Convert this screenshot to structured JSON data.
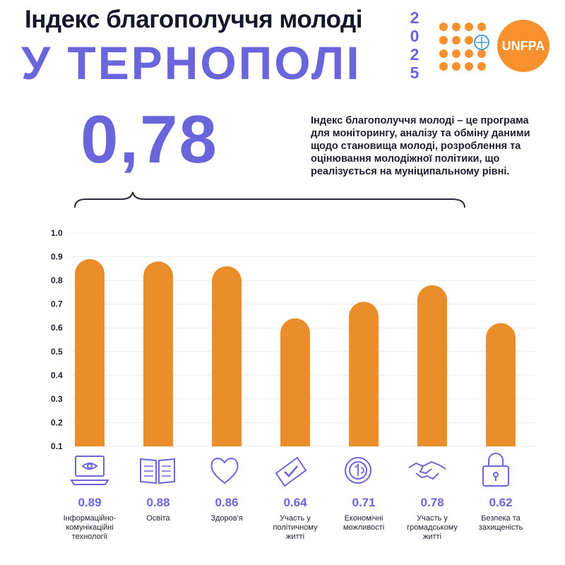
{
  "header": {
    "title_line1": "Індекс благополуччя молоді",
    "title_line2": "У ТЕРНОПОЛІ",
    "year_digits": [
      "2",
      "0",
      "2",
      "5"
    ]
  },
  "logo": {
    "text": "UNFPA",
    "color": "#f7902d",
    "icon": "un-emblem-icon"
  },
  "summary": {
    "index_value": "0,78",
    "description_lines": [
      "Індекс благополуччя молоді – це програма",
      "для моніторингу, аналізу та обміну даними",
      "щодо становища молоді, розроблення та",
      "оцінювання молодіжної політики, що",
      "реалізується на муніципальному рівні."
    ]
  },
  "colors": {
    "accent": "#6b65dc",
    "bar": "#ea8e2c",
    "text": "#1e1e2e"
  },
  "chart_data": {
    "type": "bar",
    "ylim": [
      0.1,
      1.0
    ],
    "yticks": [
      "1.0",
      "0.9",
      "0.8",
      "0.7",
      "0.6",
      "0.5",
      "0.4",
      "0.3",
      "0.2",
      "0.1"
    ],
    "grid": true,
    "categories": [
      {
        "value": 0.89,
        "value_label": "0.89",
        "label_lines": [
          "Інформаційно-",
          "комунікаційні",
          "технології"
        ],
        "icon": "laptop-icon"
      },
      {
        "value": 0.88,
        "value_label": "0.88",
        "label_lines": [
          "Освіта"
        ],
        "icon": "open-book-icon"
      },
      {
        "value": 0.86,
        "value_label": "0.86",
        "label_lines": [
          "Здоров'я"
        ],
        "icon": "heart-icon"
      },
      {
        "value": 0.64,
        "value_label": "0.64",
        "label_lines": [
          "Участь у",
          "політичному",
          "житті"
        ],
        "icon": "ballot-icon"
      },
      {
        "value": 0.71,
        "value_label": "0.71",
        "label_lines": [
          "Економічні",
          "можливості"
        ],
        "icon": "coin-icon"
      },
      {
        "value": 0.78,
        "value_label": "0.78",
        "label_lines": [
          "Участь у",
          "громадському",
          "житті"
        ],
        "icon": "handshake-icon"
      },
      {
        "value": 0.62,
        "value_label": "0.62",
        "label_lines": [
          "Безпека та",
          "захищеність"
        ],
        "icon": "padlock-icon"
      }
    ]
  }
}
